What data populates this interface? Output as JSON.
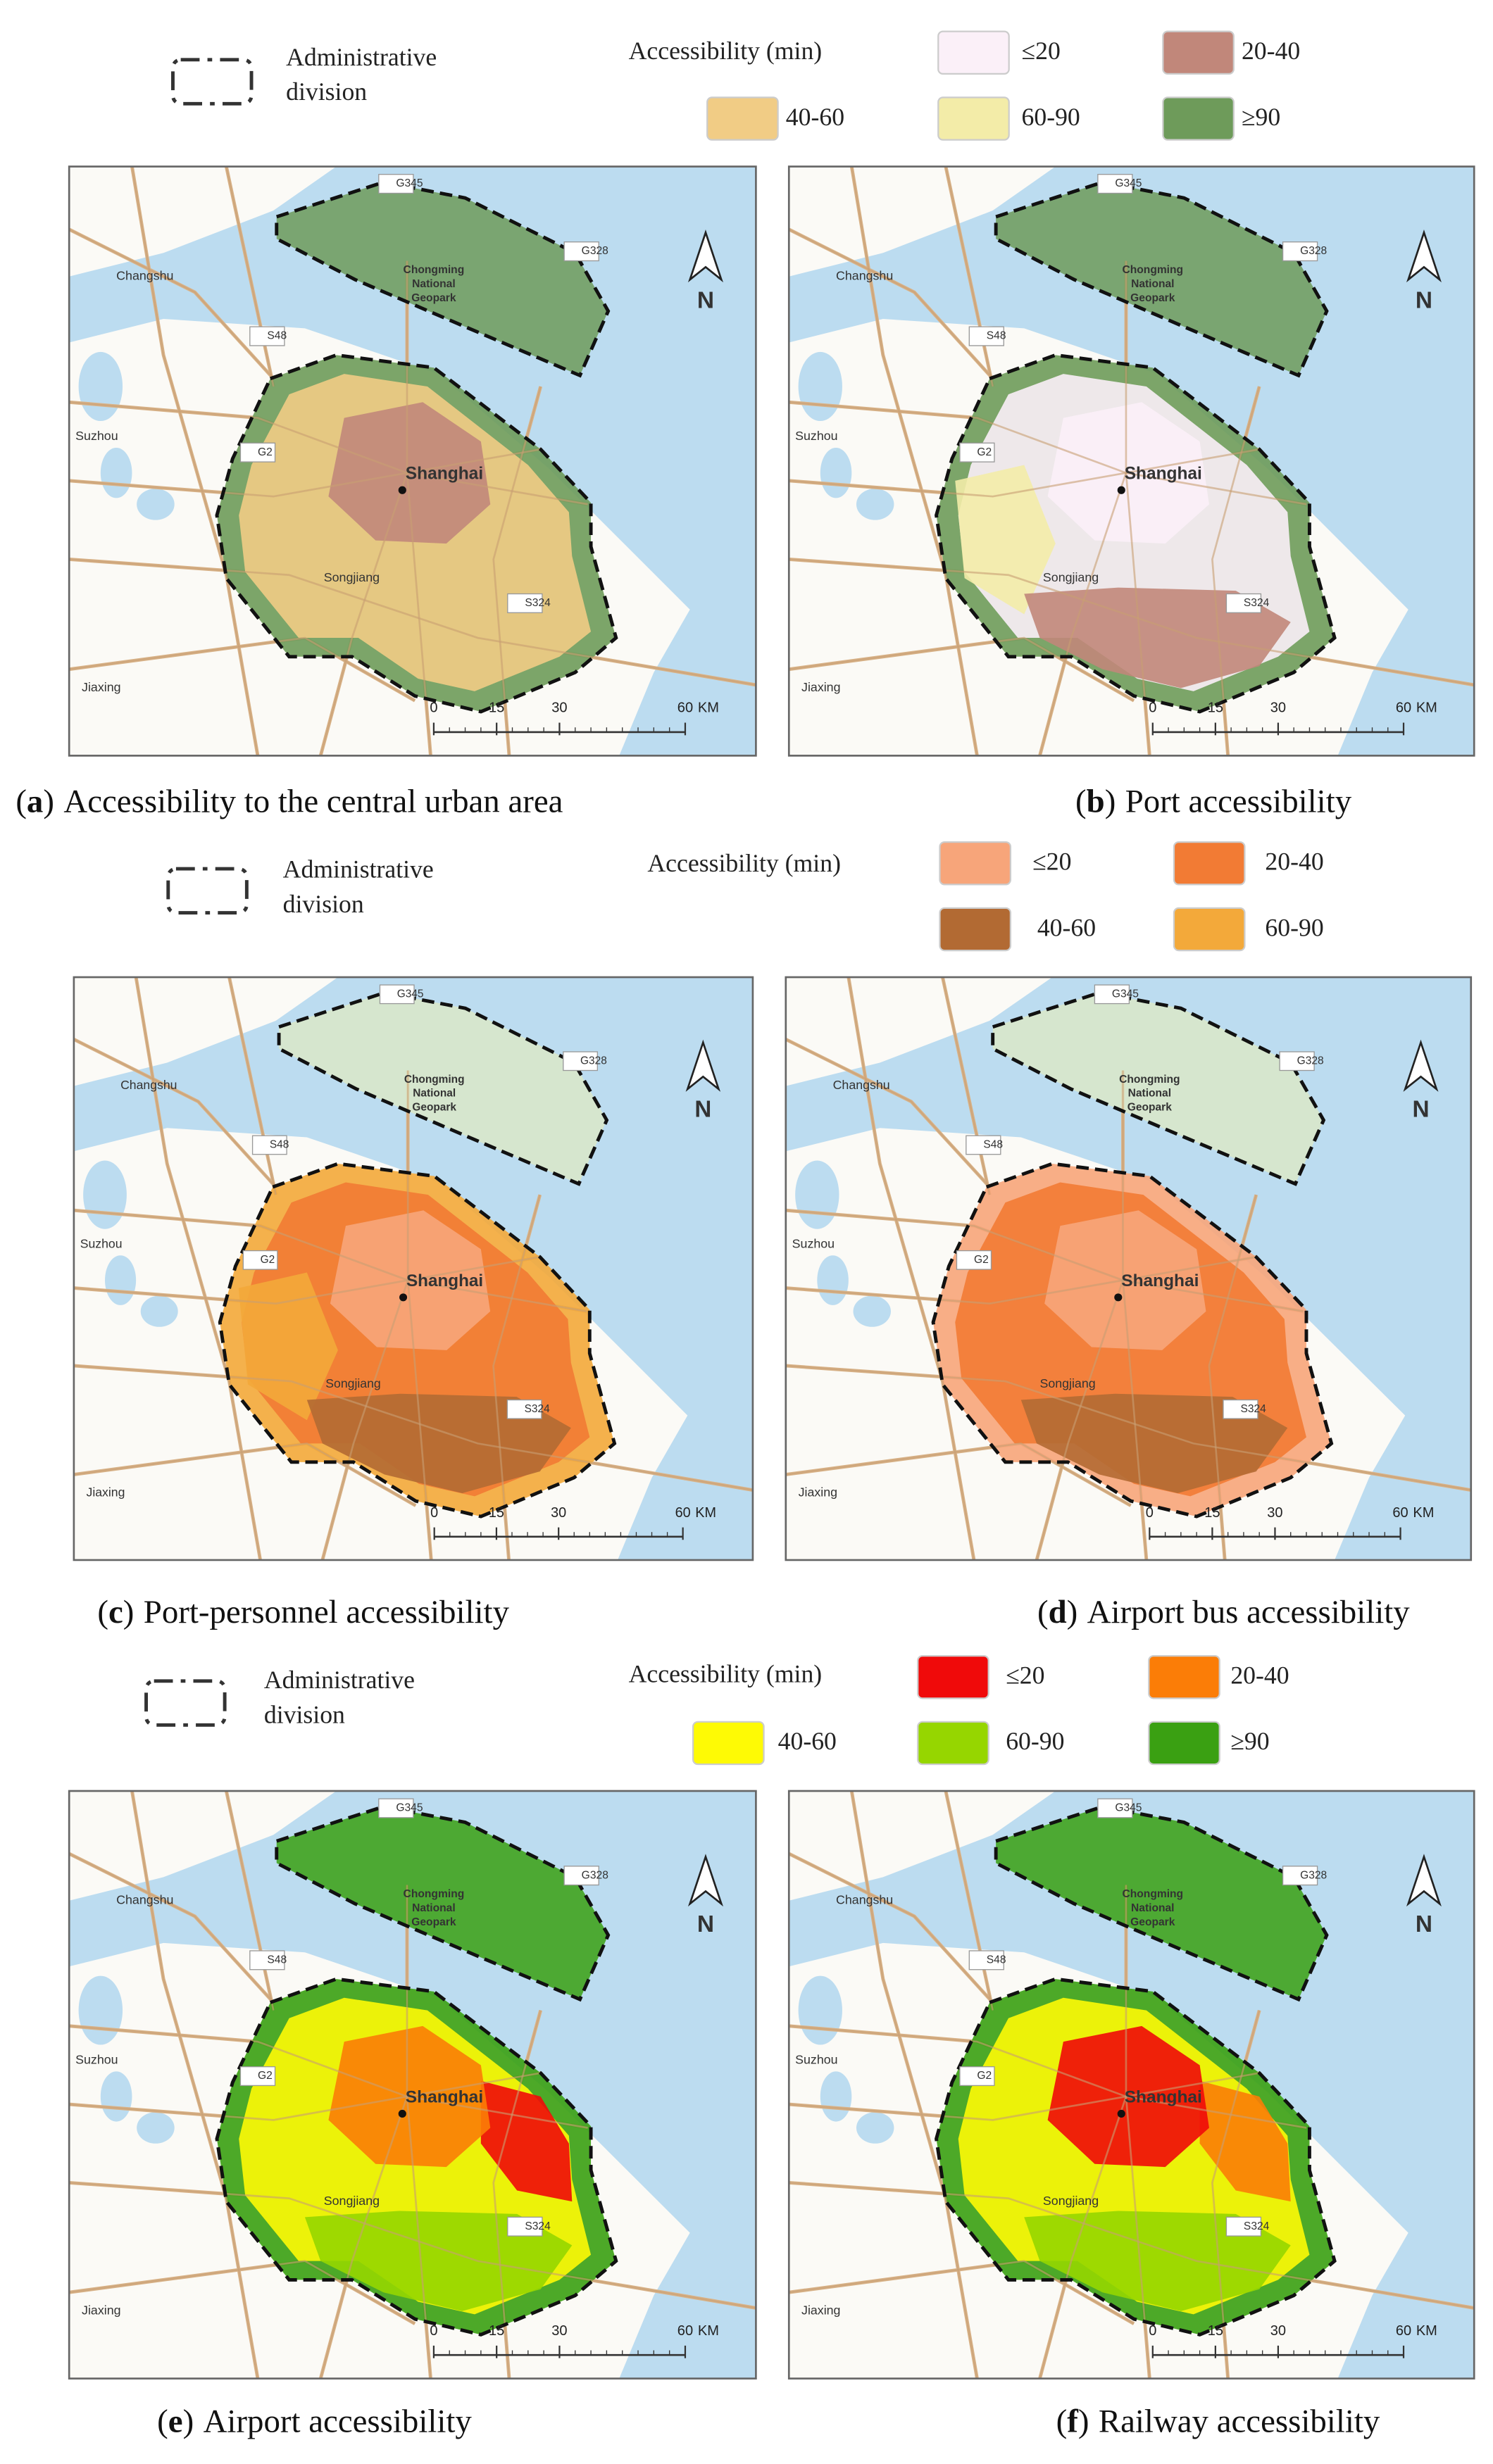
{
  "legends": [
    {
      "admin": [
        "Administrative",
        "division"
      ],
      "title": "Accessibility (min)",
      "items": [
        {
          "label": "≤20",
          "color": "#fbf0f8"
        },
        {
          "label": "20-40",
          "color": "#c1877a"
        },
        {
          "label": "40-60",
          "color": "#f1cc85"
        },
        {
          "label": "60-90",
          "color": "#f3eca8"
        },
        {
          "label": "≥90",
          "color": "#6e9b5a"
        }
      ]
    },
    {
      "admin": [
        "Administrative",
        "division"
      ],
      "title": "Accessibility (min)",
      "items": [
        {
          "label": "≤20",
          "color": "#f7a57a"
        },
        {
          "label": "20-40",
          "color": "#f27b34"
        },
        {
          "label": "40-60",
          "color": "#b26a33"
        },
        {
          "label": "60-90",
          "color": "#f3a93a"
        }
      ]
    },
    {
      "admin": [
        "Administrative",
        "division"
      ],
      "title": "Accessibility (min)",
      "items": [
        {
          "label": "≤20",
          "color": "#f00a0a"
        },
        {
          "label": "20-40",
          "color": "#fb7d07"
        },
        {
          "label": "40-60",
          "color": "#fefa05"
        },
        {
          "label": "60-90",
          "color": "#96d600"
        },
        {
          "label": "≥90",
          "color": "#3aa012"
        }
      ]
    }
  ],
  "panels": [
    {
      "prefix": "(",
      "letter": "a",
      "suffix": ")",
      "text": "Accessibility to the central urban area"
    },
    {
      "prefix": "(",
      "letter": "b",
      "suffix": ")",
      "text": "Port accessibility"
    },
    {
      "prefix": "(",
      "letter": "c",
      "suffix": ")",
      "text": "Port-personnel accessibility"
    },
    {
      "prefix": "(",
      "letter": "d",
      "suffix": ")",
      "text": "Airport bus accessibility"
    },
    {
      "prefix": "(",
      "letter": "e",
      "suffix": ")",
      "text": "Airport accessibility"
    },
    {
      "prefix": "(",
      "letter": "f",
      "suffix": ")",
      "text": "Railway accessibility"
    }
  ],
  "map_labels": {
    "changshu": "Changshu",
    "suzhou": "Suzhou",
    "jiaxing": "Jiaxing",
    "shanghai": "Shanghai",
    "songjiang": "Songjiang",
    "s48": "S48",
    "g2": "G2",
    "g345": "G345",
    "g328": "G328",
    "s324": "S324",
    "geopark": [
      "Chongming",
      "National",
      "Geopark"
    ],
    "north": "N"
  },
  "scale_bar": {
    "ticks": [
      0,
      15,
      30,
      60
    ],
    "unit": "KM"
  }
}
